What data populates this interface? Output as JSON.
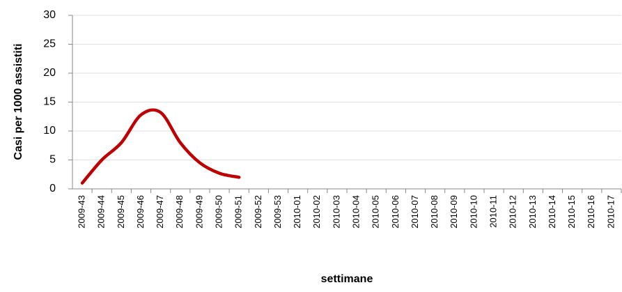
{
  "chart_data": {
    "type": "line",
    "ylabel": "Casi per 1000 assistiti",
    "xlabel": "settimane",
    "categories": [
      "2009-43",
      "2009-44",
      "2009-45",
      "2009-46",
      "2009-47",
      "2009-48",
      "2009-49",
      "2009-50",
      "2009-51",
      "2009-52",
      "2009-53",
      "2010-01",
      "2010-02",
      "2010-03",
      "2010-04",
      "2010-05",
      "2010-06",
      "2010-07",
      "2010-08",
      "2010-09",
      "2010-10",
      "2010-11",
      "2010-12",
      "2010-13",
      "2010-14",
      "2010-15",
      "2010-16",
      "2010-17"
    ],
    "series": [
      {
        "color": "#c00000",
        "values": [
          1.0,
          5.0,
          8.0,
          12.8,
          13.2,
          8.0,
          4.5,
          2.7,
          2.0,
          null,
          null,
          null,
          null,
          null,
          null,
          null,
          null,
          null,
          null,
          null,
          null,
          null,
          null,
          null,
          null,
          null,
          null,
          null
        ]
      }
    ],
    "ylim": [
      0,
      30
    ],
    "yticks": [
      0,
      5,
      10,
      15,
      20,
      25,
      30
    ],
    "grid": true,
    "smooth": true
  }
}
